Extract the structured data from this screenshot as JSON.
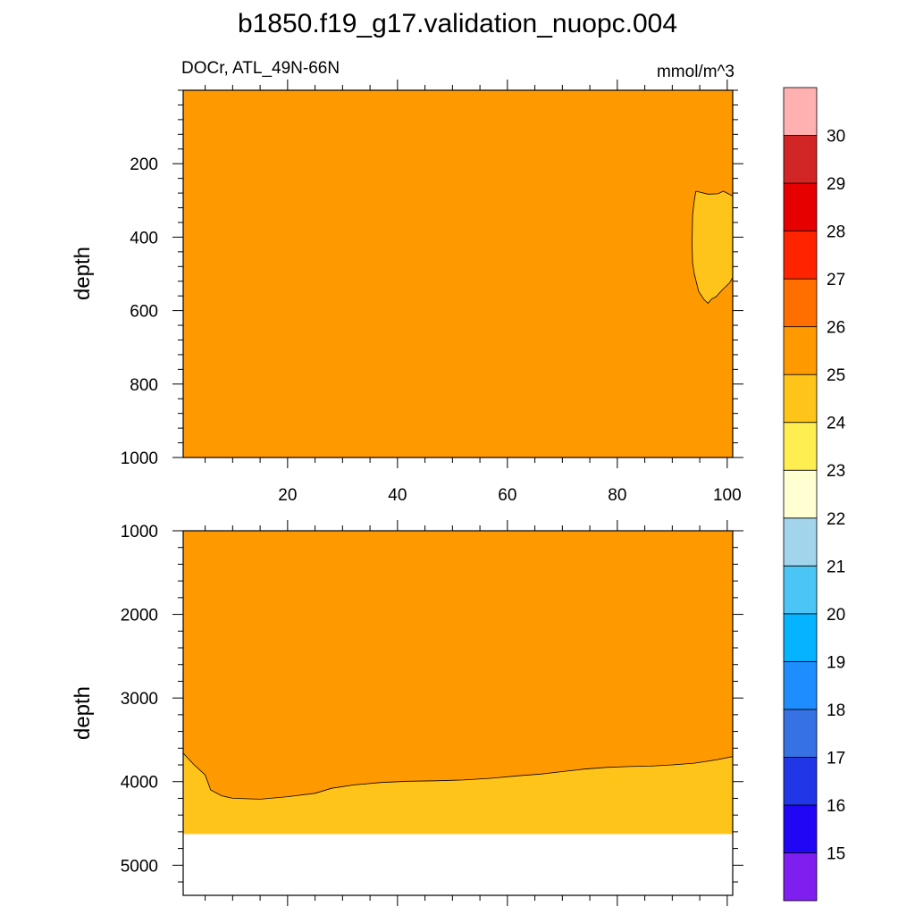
{
  "title": "b1850.f19_g17.validation_nuopc.004",
  "subtitle_left": "DOCr, ATL_49N-66N",
  "subtitle_right": "mmol/m^3",
  "chart_data": [
    {
      "type": "contour",
      "panel": "upper",
      "ylabel": "depth",
      "xlim": [
        1,
        101
      ],
      "ylim": [
        0,
        1000
      ],
      "y_inverted": true,
      "xticks": [
        20,
        40,
        60,
        80,
        100
      ],
      "xticklabels": [
        "20",
        "40",
        "60",
        "80",
        "100"
      ],
      "yticks": [
        200,
        400,
        600,
        800,
        1000
      ],
      "yticklabels": [
        "200",
        "400",
        "600",
        "800",
        "1000"
      ],
      "background_level": "25-26",
      "background_color": "#FF9900",
      "regions": [
        {
          "level": "24-25",
          "color": "#FFC41A",
          "outline": [
            [
              94.3,
              275
            ],
            [
              96.5,
              283
            ],
            [
              98.3,
              282
            ],
            [
              99.3,
              275
            ],
            [
              101,
              288
            ],
            [
              101,
              510
            ],
            [
              100.4,
              525
            ],
            [
              99,
              545
            ],
            [
              98,
              562
            ],
            [
              97.2,
              568
            ],
            [
              96.5,
              580
            ],
            [
              95.8,
              570
            ],
            [
              94.8,
              548
            ],
            [
              94.0,
              500
            ],
            [
              93.7,
              470
            ],
            [
              93.6,
              420
            ],
            [
              93.7,
              340
            ],
            [
              94.0,
              300
            ]
          ]
        }
      ]
    },
    {
      "type": "contour",
      "panel": "lower",
      "ylabel": "depth",
      "xlim": [
        1,
        101
      ],
      "ylim": [
        1000,
        5360
      ],
      "y_inverted": true,
      "xticks": [
        20,
        40,
        60,
        80,
        100
      ],
      "yticks": [
        1000,
        2000,
        3000,
        4000,
        5000
      ],
      "yticklabels": [
        "1000",
        "2000",
        "3000",
        "4000",
        "5000"
      ],
      "background_level": "25-26",
      "background_color": "#FF9900",
      "missing_below_depth": 4625,
      "regions": [
        {
          "level": "24-25",
          "color": "#FFC41A",
          "upper_boundary": [
            [
              1,
              3660
            ],
            [
              3,
              3800
            ],
            [
              5,
              3920
            ],
            [
              6,
              4100
            ],
            [
              8,
              4170
            ],
            [
              10,
              4200
            ],
            [
              15,
              4210
            ],
            [
              20,
              4180
            ],
            [
              25,
              4140
            ],
            [
              28,
              4080
            ],
            [
              32,
              4040
            ],
            [
              37,
              4010
            ],
            [
              42,
              3995
            ],
            [
              47,
              3990
            ],
            [
              52,
              3980
            ],
            [
              57,
              3960
            ],
            [
              62,
              3930
            ],
            [
              66,
              3910
            ],
            [
              70,
              3880
            ],
            [
              74,
              3850
            ],
            [
              78,
              3830
            ],
            [
              82,
              3820
            ],
            [
              86,
              3815
            ],
            [
              90,
              3800
            ],
            [
              94,
              3780
            ],
            [
              98,
              3740
            ],
            [
              101,
              3700
            ]
          ]
        }
      ]
    }
  ],
  "colorbar": {
    "levels": [
      "15",
      "16",
      "17",
      "18",
      "19",
      "20",
      "21",
      "22",
      "23",
      "24",
      "25",
      "26",
      "27",
      "28",
      "29",
      "30"
    ],
    "colors": [
      "#7F1FEF",
      "#2006F5",
      "#2136E7",
      "#3672E3",
      "#1E8DFF",
      "#06B3FF",
      "#4BC5F6",
      "#A2D5EC",
      "#FFFFD1",
      "#FFEE51",
      "#FFC41A",
      "#FF9900",
      "#FF6F00",
      "#FF2400",
      "#E60000",
      "#D22525",
      "#FFB0B0"
    ]
  }
}
